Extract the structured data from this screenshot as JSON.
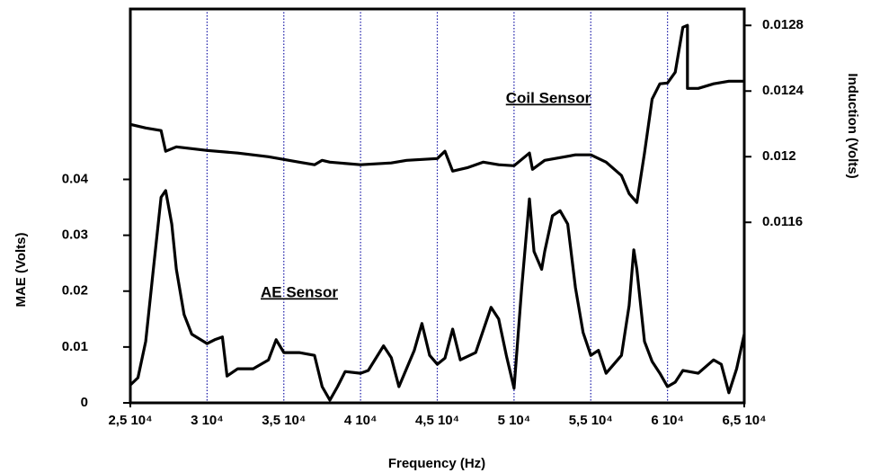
{
  "chart_data": {
    "type": "line",
    "x_label": "Frequency (Hz)",
    "y_label": "MAE (Volts)",
    "y2_label": "Induction (Volts)",
    "xlim": [
      25000,
      65000
    ],
    "xticks": [
      {
        "value": 25000,
        "label": "2,5 10⁴"
      },
      {
        "value": 30000,
        "label": "3 10⁴"
      },
      {
        "value": 35000,
        "label": "3,5 10⁴"
      },
      {
        "value": 40000,
        "label": "4 10⁴"
      },
      {
        "value": 45000,
        "label": "4,5 10⁴"
      },
      {
        "value": 50000,
        "label": "5 10⁴"
      },
      {
        "value": 55000,
        "label": "5,5 10⁴"
      },
      {
        "value": 60000,
        "label": "6 10⁴"
      },
      {
        "value": 65000,
        "label": "6,5 10⁴"
      }
    ],
    "ylim": [
      0,
      0.0705
    ],
    "yticks": [
      0,
      0.01,
      0.02,
      0.03,
      0.04
    ],
    "y2lim": [
      0.0105,
      0.0129
    ],
    "y2ticks": [
      0.0116,
      0.012,
      0.0124,
      0.0128
    ],
    "grid": true,
    "grid_color": "#1a1aa8",
    "series": [
      {
        "name": "Coil Sensor",
        "color": "#000000",
        "axis": "y2",
        "x": [
          25000,
          26000,
          27000,
          27300,
          28000,
          30000,
          32000,
          34000,
          36000,
          37000,
          37500,
          38000,
          40000,
          42000,
          43000,
          45000,
          45500,
          46000,
          47000,
          48000,
          49000,
          50000,
          51000,
          51200,
          52000,
          54000,
          55000,
          56000,
          57000,
          57500,
          58000,
          58500,
          59000,
          59500,
          60000,
          60500,
          61000,
          61300,
          61300,
          62000,
          63000,
          64000,
          65000
        ],
        "values": [
          0.012197,
          0.012175,
          0.012159,
          0.012033,
          0.01206,
          0.012038,
          0.012022,
          0.012,
          0.011967,
          0.011951,
          0.011978,
          0.011967,
          0.011951,
          0.011962,
          0.011978,
          0.011989,
          0.012033,
          0.011912,
          0.011934,
          0.011967,
          0.011951,
          0.011945,
          0.012022,
          0.011923,
          0.011978,
          0.012011,
          0.012011,
          0.011967,
          0.011885,
          0.011775,
          0.011721,
          0.012022,
          0.012351,
          0.012444,
          0.012449,
          0.012515,
          0.012789,
          0.0128,
          0.012416,
          0.012416,
          0.012444,
          0.01246,
          0.01246
        ]
      },
      {
        "name": "AE  Sensor",
        "color": "#000000",
        "x": [
          25000,
          25500,
          26000,
          26500,
          27000,
          27300,
          27700,
          28000,
          28500,
          29000,
          30000,
          30500,
          31000,
          31300,
          32000,
          33000,
          34000,
          34500,
          35000,
          36000,
          37000,
          37500,
          38000,
          38500,
          39000,
          40000,
          40500,
          41500,
          42000,
          42500,
          43500,
          44000,
          44500,
          45000,
          45500,
          46000,
          46500,
          47500,
          48500,
          49000,
          49500,
          50000,
          50500,
          51000,
          51300,
          51800,
          52000,
          52500,
          53000,
          53500,
          54000,
          54500,
          55000,
          55500,
          56000,
          57000,
          57500,
          57800,
          58000,
          58500,
          59000,
          59500,
          60000,
          60500,
          61000,
          62000,
          63000,
          63500,
          64000,
          64500,
          65000
        ],
        "values": [
          0.0032,
          0.0045,
          0.011,
          0.0239,
          0.0368,
          0.038,
          0.032,
          0.0239,
          0.0158,
          0.0123,
          0.0106,
          0.0113,
          0.0118,
          0.0048,
          0.0061,
          0.0061,
          0.0077,
          0.0113,
          0.009,
          0.009,
          0.0085,
          0.0029,
          0.0005,
          0.0029,
          0.0056,
          0.0053,
          0.0058,
          0.0102,
          0.0081,
          0.0029,
          0.0094,
          0.0142,
          0.0085,
          0.0069,
          0.008,
          0.0132,
          0.0077,
          0.009,
          0.0171,
          0.015,
          0.0085,
          0.0026,
          0.0206,
          0.0365,
          0.0271,
          0.0239,
          0.0271,
          0.0335,
          0.0344,
          0.032,
          0.0206,
          0.0126,
          0.0085,
          0.0094,
          0.0053,
          0.0085,
          0.0174,
          0.0274,
          0.0239,
          0.011,
          0.0074,
          0.0053,
          0.0029,
          0.0037,
          0.0058,
          0.0053,
          0.0077,
          0.0069,
          0.0018,
          0.0061,
          0.0123
        ]
      }
    ]
  }
}
